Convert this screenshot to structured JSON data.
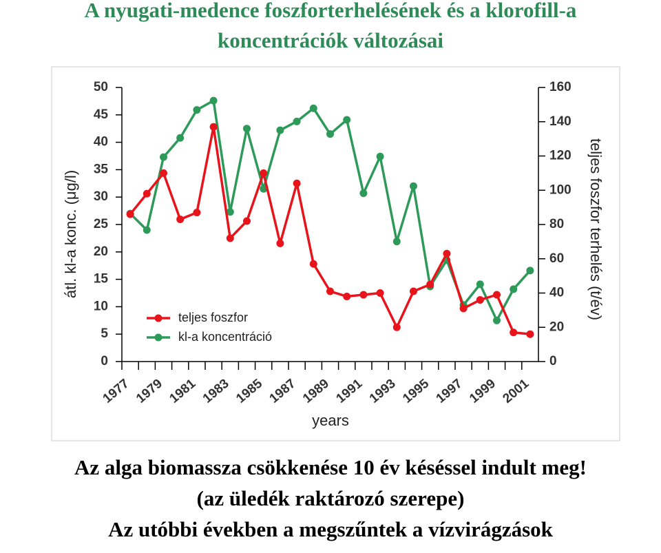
{
  "chart_data": {
    "type": "line",
    "title": [
      "A nyugati-medence foszforterhelésének és a klorofill-a",
      "koncentrációk változásai"
    ],
    "notes": [
      "Az alga biomassza csökkenése 10 év késéssel indult meg!",
      "(az üledék raktározó szerepe)",
      "Az utóbbi években a megszűntek a vízvirágzások"
    ],
    "xlabel": "years",
    "ylabel": "átl. kl-a konc. (μg/l)",
    "y2label": "teljes foszfor  terhelés (t/év)",
    "categories": [
      "1977",
      null,
      "1979",
      null,
      "1981",
      null,
      "1983",
      null,
      "1985",
      null,
      "1987",
      null,
      "1989",
      null,
      "1991",
      null,
      "1993",
      null,
      "1995",
      null,
      "1997",
      null,
      "1999",
      null,
      "2001"
    ],
    "ylim": [
      0,
      50
    ],
    "yticks": [
      0,
      5,
      10,
      15,
      20,
      25,
      30,
      35,
      40,
      45,
      50
    ],
    "y2lim": [
      0,
      160
    ],
    "y2ticks": [
      0,
      20,
      40,
      60,
      80,
      100,
      120,
      140,
      160
    ],
    "legend": "lower left",
    "series": [
      {
        "name": "teljes foszfor",
        "color": "#e8141c",
        "axis": "y2",
        "values": [
          86,
          98,
          110,
          83,
          87,
          137,
          72,
          82,
          110,
          69,
          104,
          57,
          41,
          38,
          39,
          40,
          20,
          41,
          45,
          63,
          31,
          36,
          39,
          17,
          16
        ]
      },
      {
        "name": "kl-a koncentráció",
        "color": "#2e9a5a",
        "values": [
          27.0,
          24.0,
          37.3,
          40.8,
          45.9,
          47.6,
          27.3,
          42.5,
          31.5,
          42.2,
          43.8,
          46.2,
          41.5,
          44.1,
          30.7,
          37.4,
          21.9,
          32.0,
          13.7,
          18.5,
          10.3,
          14.1,
          7.5,
          13.2,
          16.6
        ]
      }
    ]
  }
}
